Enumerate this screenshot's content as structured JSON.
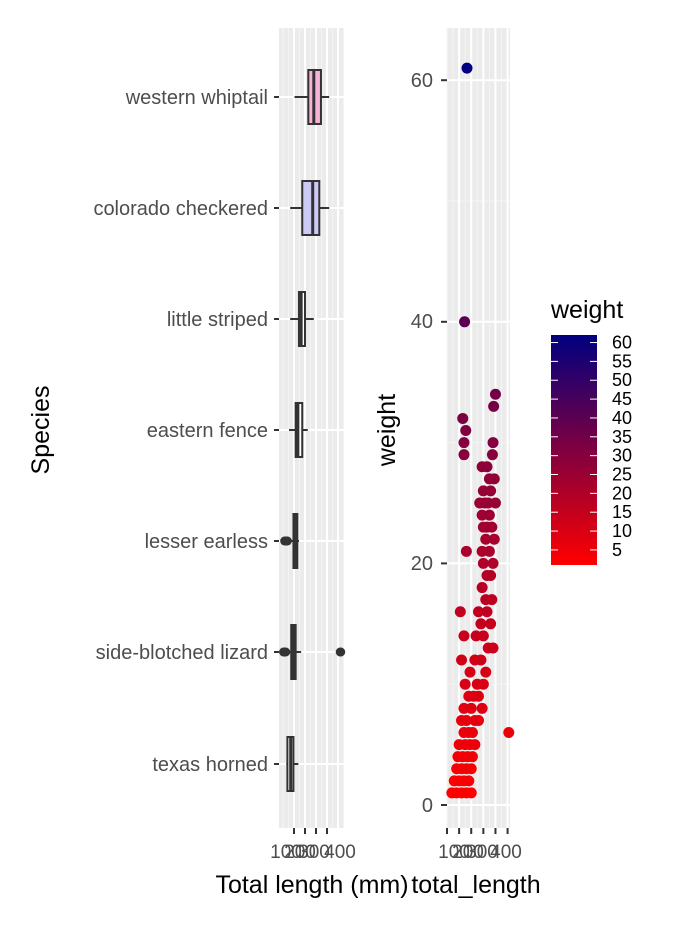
{
  "chart_data": [
    {
      "type": "boxplot",
      "xlabel": "Total length (mm)",
      "ylabel": "Species",
      "x_ticks": [
        "100",
        "200",
        "300",
        "400"
      ],
      "categories": [
        "western whiptail",
        "colorado checkered",
        "little striped",
        "eastern fence",
        "lesser earless",
        "side-blotched lizard",
        "texas horned"
      ],
      "boxes": [
        {
          "name": "western whiptail",
          "fill": "#f7b2d6",
          "whisker_low": 105,
          "q1": 230,
          "median": 280,
          "q3": 345,
          "whisker_high": 420,
          "outliers": []
        },
        {
          "name": "colorado checkered",
          "fill": "#cccbf6",
          "whisker_low": 65,
          "q1": 175,
          "median": 270,
          "q3": 330,
          "whisker_high": 420,
          "outliers": []
        },
        {
          "name": "little striped",
          "fill": "#ffffff",
          "whisker_low": 65,
          "q1": 145,
          "median": 165,
          "q3": 200,
          "whisker_high": 280,
          "outliers": []
        },
        {
          "name": "eastern fence",
          "fill": "#ffffff",
          "whisker_low": 55,
          "q1": 115,
          "median": 135,
          "q3": 175,
          "whisker_high": 225,
          "outliers": []
        },
        {
          "name": "lesser earless",
          "fill": "#ffffff",
          "whisker_low": 70,
          "q1": 95,
          "median": 110,
          "q3": 130,
          "whisker_high": 145,
          "outliers": [
            15,
            20,
            25,
            30,
            35,
            40
          ]
        },
        {
          "name": "side-blotched lizard",
          "fill": "#ffffff",
          "whisker_low": 45,
          "q1": 75,
          "median": 95,
          "q3": 115,
          "whisker_high": 165,
          "outliers": [
            5,
            10,
            15,
            20,
            25,
            520,
            525
          ]
        },
        {
          "name": "texas horned",
          "fill": "#ffffff",
          "whisker_low": 30,
          "q1": 40,
          "median": 70,
          "q3": 95,
          "whisker_high": 140,
          "outliers": []
        }
      ]
    },
    {
      "type": "scatter",
      "xlabel": "total_length",
      "ylabel": "weight",
      "x_ticks": [
        "100",
        "200",
        "300",
        "400"
      ],
      "y_ticks": [
        "0",
        "20",
        "40",
        "60"
      ],
      "xlim": [
        0,
        520
      ],
      "ylim": [
        -1,
        64
      ],
      "color_scale": {
        "title": "weight",
        "low": "#ff0000",
        "high": "#000080",
        "ticks": [
          "5",
          "10",
          "15",
          "20",
          "25",
          "30",
          "35",
          "40",
          "45",
          "50",
          "55",
          "60"
        ]
      },
      "points": [
        [
          165,
          61
        ],
        [
          145,
          40
        ],
        [
          400,
          34
        ],
        [
          385,
          33
        ],
        [
          130,
          32
        ],
        [
          155,
          31
        ],
        [
          140,
          30
        ],
        [
          380,
          30
        ],
        [
          140,
          29
        ],
        [
          375,
          29
        ],
        [
          290,
          28
        ],
        [
          330,
          28
        ],
        [
          350,
          27
        ],
        [
          390,
          27
        ],
        [
          300,
          26
        ],
        [
          360,
          26
        ],
        [
          270,
          25
        ],
        [
          310,
          25
        ],
        [
          340,
          25
        ],
        [
          400,
          25
        ],
        [
          290,
          24
        ],
        [
          350,
          24
        ],
        [
          300,
          23
        ],
        [
          330,
          23
        ],
        [
          370,
          23
        ],
        [
          320,
          22
        ],
        [
          390,
          22
        ],
        [
          290,
          21
        ],
        [
          160,
          21
        ],
        [
          350,
          21
        ],
        [
          300,
          20
        ],
        [
          380,
          20
        ],
        [
          330,
          19
        ],
        [
          360,
          19
        ],
        [
          290,
          18
        ],
        [
          320,
          17
        ],
        [
          370,
          17
        ],
        [
          260,
          16
        ],
        [
          110,
          16
        ],
        [
          330,
          16
        ],
        [
          280,
          15
        ],
        [
          360,
          15
        ],
        [
          140,
          14
        ],
        [
          240,
          14
        ],
        [
          300,
          14
        ],
        [
          340,
          13
        ],
        [
          380,
          13
        ],
        [
          230,
          12
        ],
        [
          120,
          12
        ],
        [
          280,
          12
        ],
        [
          320,
          11
        ],
        [
          190,
          11
        ],
        [
          150,
          10
        ],
        [
          250,
          10
        ],
        [
          300,
          10
        ],
        [
          180,
          9
        ],
        [
          220,
          9
        ],
        [
          260,
          9
        ],
        [
          140,
          8
        ],
        [
          200,
          8
        ],
        [
          290,
          8
        ],
        [
          160,
          7
        ],
        [
          230,
          7
        ],
        [
          120,
          7
        ],
        [
          260,
          7
        ],
        [
          510,
          6
        ],
        [
          140,
          6
        ],
        [
          180,
          6
        ],
        [
          210,
          6
        ],
        [
          100,
          5
        ],
        [
          150,
          5
        ],
        [
          190,
          5
        ],
        [
          230,
          5
        ],
        [
          90,
          4
        ],
        [
          130,
          4
        ],
        [
          170,
          4
        ],
        [
          210,
          4
        ],
        [
          80,
          3
        ],
        [
          120,
          3
        ],
        [
          160,
          3
        ],
        [
          200,
          3
        ],
        [
          60,
          2
        ],
        [
          100,
          2
        ],
        [
          140,
          2
        ],
        [
          180,
          2
        ],
        [
          40,
          1
        ],
        [
          80,
          1
        ],
        [
          120,
          1
        ],
        [
          160,
          1
        ],
        [
          200,
          1
        ]
      ]
    }
  ]
}
